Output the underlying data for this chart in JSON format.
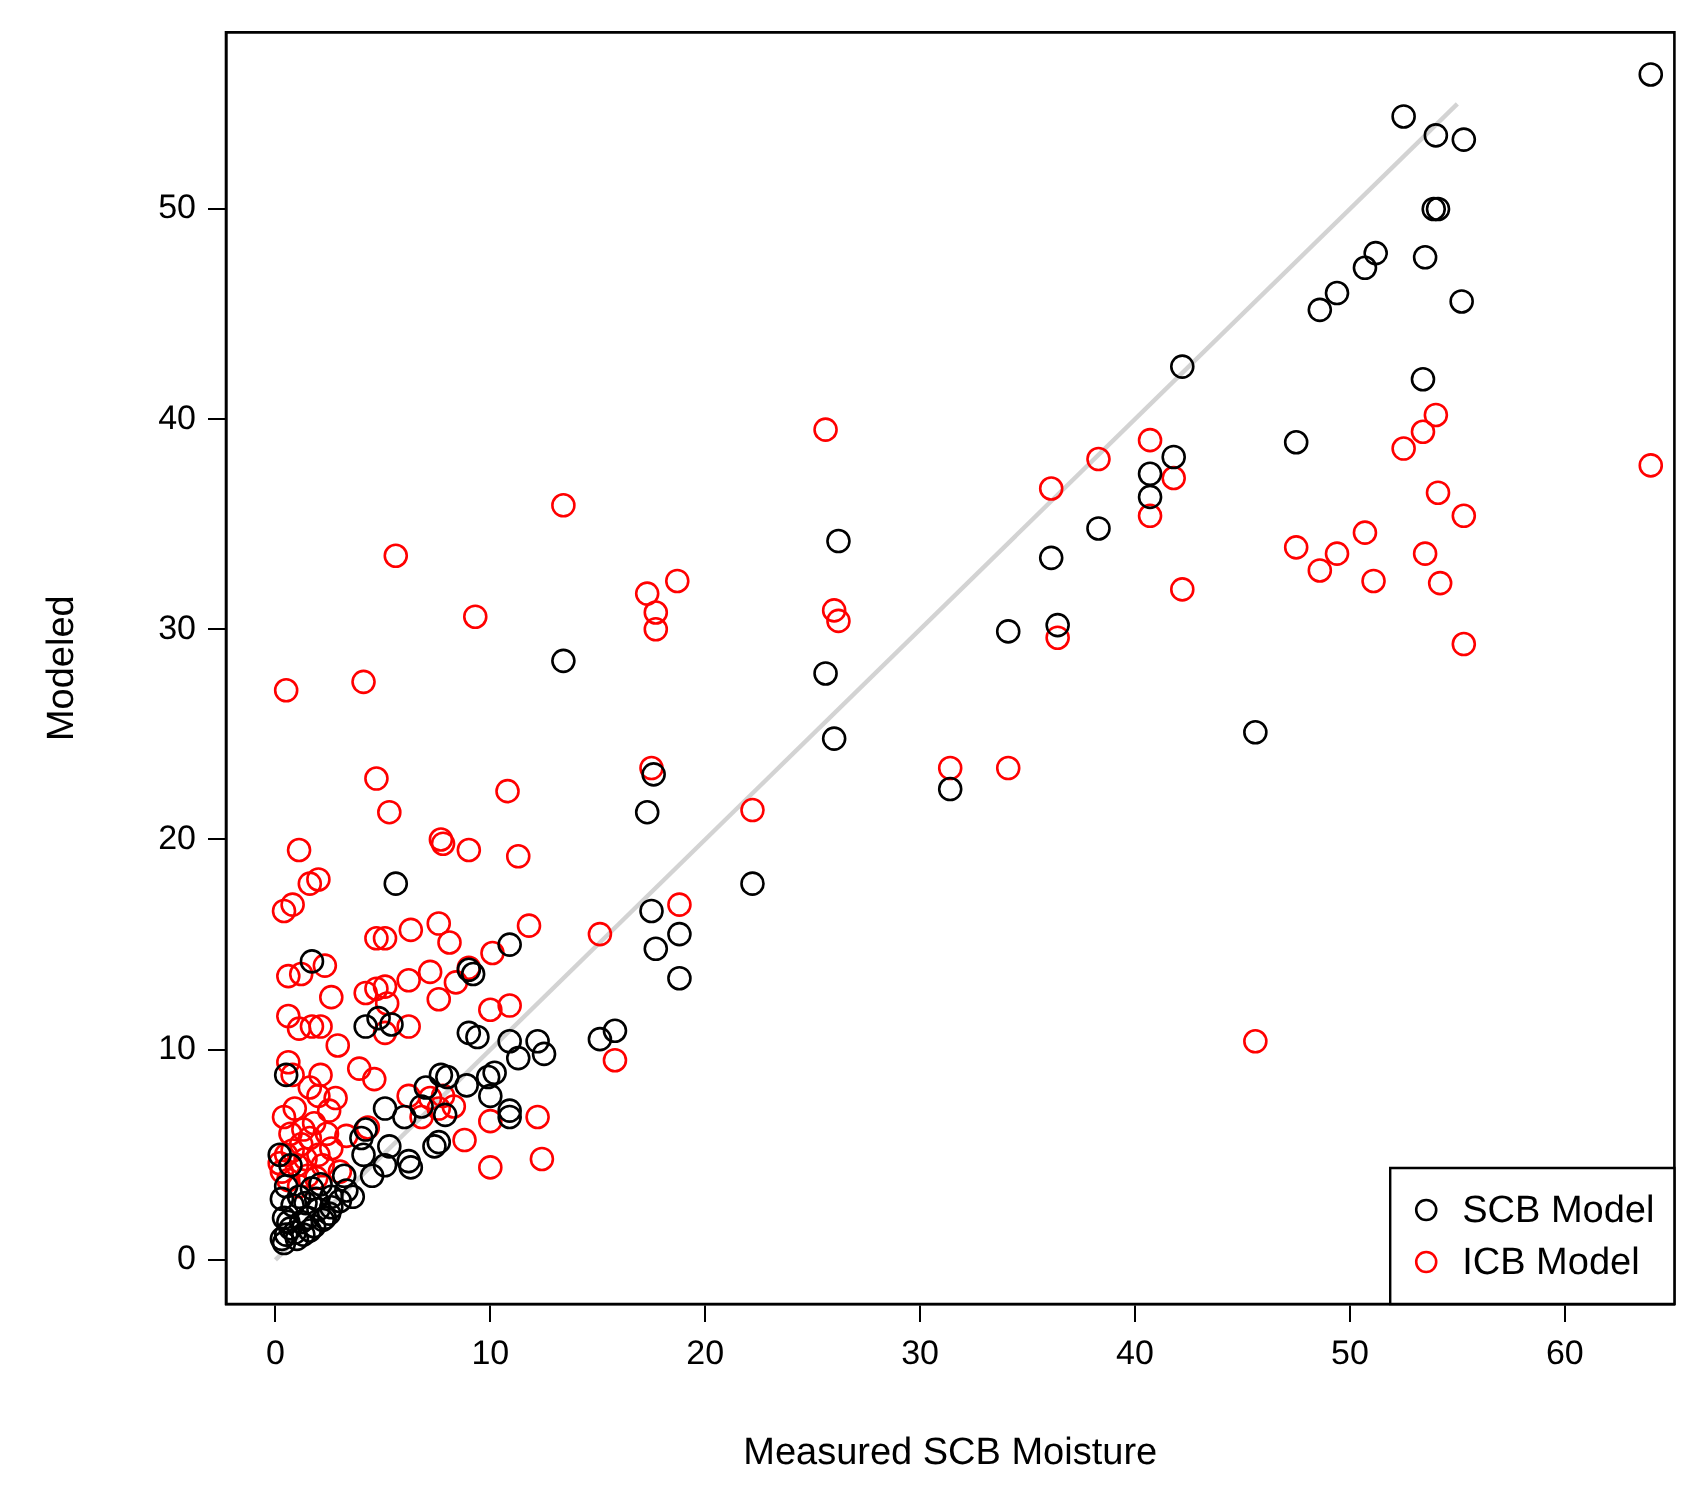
{
  "chart_data": {
    "type": "scatter",
    "xlabel": "Measured SCB Moisture",
    "ylabel": "Modeled",
    "xlim": [
      -2.3,
      65.1
    ],
    "ylim": [
      -2.1,
      58.4
    ],
    "xticks": [
      0,
      10,
      20,
      30,
      40,
      50,
      60
    ],
    "yticks": [
      0,
      10,
      20,
      30,
      40,
      50
    ],
    "grid": false,
    "legend": "bottom right",
    "marker": "circle",
    "series": [
      {
        "name": "SCB Model",
        "color": "#000000",
        "x": [
          64.0,
          52.5,
          54.0,
          55.3,
          54.1,
          53.9,
          53.5,
          51.2,
          50.7,
          49.4,
          48.6,
          55.2,
          42.2,
          53.4,
          47.5,
          41.8,
          40.7,
          40.7,
          45.6,
          38.3,
          36.1,
          26.2,
          34.1,
          36.4,
          25.6,
          26.0,
          31.4,
          17.6,
          17.3,
          22.2,
          17.5,
          18.8,
          17.7,
          18.8,
          15.8,
          15.1,
          13.4,
          5.6,
          1.7,
          10.9,
          9.2,
          9.0,
          4.2,
          4.8,
          5.4,
          9.0,
          9.4,
          10.9,
          12.2,
          12.5,
          11.3,
          0.5,
          7.7,
          8.0,
          9.9,
          10.2,
          8.9,
          7.0,
          10.0,
          10.9,
          10.9,
          5.1,
          6.0,
          7.9,
          6.8,
          7.6,
          7.4,
          4.2,
          5.3,
          6.2,
          6.3,
          5.1,
          4.1,
          3.2,
          3.0,
          2.6,
          0.3,
          0.5,
          0.7,
          1.0,
          1.2,
          1.5,
          1.8,
          2.0,
          2.3,
          2.6,
          0.4,
          0.8,
          1.1,
          1.4,
          1.7,
          2.1,
          0.3,
          0.6,
          0.9,
          1.3,
          1.6,
          2.2,
          0.5,
          0.7,
          0.4,
          1.9,
          2.5,
          3.3,
          3.6,
          4.5,
          4.0,
          0.2
        ],
        "values": [
          56.4,
          54.4,
          53.5,
          53.3,
          50.0,
          50.0,
          47.7,
          47.9,
          47.2,
          46.0,
          45.2,
          45.6,
          42.5,
          41.9,
          38.9,
          38.2,
          37.4,
          36.3,
          25.1,
          34.8,
          33.4,
          34.2,
          29.9,
          30.2,
          27.9,
          24.8,
          22.4,
          23.1,
          21.3,
          17.9,
          16.6,
          15.5,
          14.8,
          13.4,
          10.9,
          10.5,
          28.5,
          17.9,
          14.2,
          15.0,
          13.6,
          13.8,
          11.1,
          11.5,
          11.2,
          10.8,
          10.6,
          10.4,
          10.4,
          9.8,
          9.6,
          8.8,
          8.8,
          8.7,
          8.7,
          8.9,
          8.3,
          8.2,
          7.8,
          7.1,
          6.8,
          7.2,
          6.8,
          6.9,
          7.3,
          5.6,
          5.4,
          6.2,
          5.4,
          4.7,
          4.4,
          4.5,
          5.0,
          4.0,
          2.8,
          2.5,
          1.0,
          1.2,
          1.5,
          1.0,
          1.8,
          2.0,
          1.6,
          2.4,
          2.0,
          3.0,
          2.0,
          2.6,
          3.0,
          2.7,
          3.4,
          3.6,
          2.9,
          1.8,
          1.3,
          1.2,
          1.4,
          1.9,
          3.5,
          4.5,
          0.8,
          2.9,
          2.2,
          3.3,
          3.0,
          4.0,
          5.8,
          5.0
        ]
      },
      {
        "name": "ICB Model",
        "color": "#ff0000",
        "x": [
          40.7,
          41.8,
          40.7,
          42.2,
          54.0,
          53.4,
          52.5,
          64.0,
          54.1,
          55.3,
          50.7,
          47.5,
          49.4,
          53.5,
          48.6,
          51.1,
          54.2,
          55.3,
          45.6,
          25.6,
          38.3,
          36.1,
          18.7,
          17.3,
          17.7,
          17.7,
          26.0,
          26.2,
          36.4,
          31.4,
          34.1,
          17.5,
          22.2,
          18.8,
          15.1,
          15.8,
          13.4,
          5.6,
          9.3,
          0.5,
          4.1,
          4.7,
          10.8,
          5.3,
          7.7,
          7.8,
          9.0,
          11.3,
          1.1,
          2.0,
          1.6,
          0.8,
          0.4,
          11.8,
          7.6,
          6.3,
          4.7,
          5.1,
          8.1,
          10.1,
          2.3,
          0.6,
          1.2,
          2.6,
          4.2,
          4.7,
          5.1,
          6.2,
          7.2,
          8.4,
          9.0,
          7.6,
          10.9,
          10.0,
          5.2,
          0.6,
          1.1,
          1.7,
          2.1,
          5.1,
          6.2,
          2.9,
          0.6,
          0.8,
          2.1,
          3.9,
          4.6,
          1.6,
          2.0,
          2.8,
          2.5,
          6.2,
          7.2,
          7.8,
          7.6,
          8.3,
          4.3,
          6.8,
          10.0,
          12.2,
          8.8,
          10.0,
          12.4,
          3.3,
          0.3,
          0.5,
          0.7,
          1.0,
          1.2,
          1.5,
          1.8,
          2.0,
          0.4,
          0.9,
          1.3,
          1.6,
          2.2,
          0.6,
          1.1,
          2.4,
          0.8,
          1.4,
          1.9,
          2.6,
          3.0,
          0.2
        ],
        "values": [
          39.0,
          37.2,
          35.4,
          31.9,
          40.2,
          39.4,
          38.6,
          37.8,
          36.5,
          35.4,
          34.6,
          33.9,
          33.6,
          33.6,
          32.8,
          32.3,
          32.2,
          29.3,
          10.4,
          39.5,
          38.1,
          36.7,
          32.3,
          31.7,
          30.8,
          30.0,
          30.9,
          30.4,
          29.6,
          23.4,
          23.4,
          23.4,
          21.4,
          16.9,
          15.5,
          9.5,
          35.9,
          33.5,
          30.6,
          27.1,
          27.5,
          22.9,
          22.3,
          21.3,
          20.0,
          19.8,
          19.5,
          19.2,
          19.5,
          18.1,
          17.9,
          16.9,
          16.6,
          15.9,
          16.0,
          15.7,
          15.3,
          15.3,
          15.1,
          14.6,
          14.0,
          13.5,
          13.6,
          12.5,
          12.7,
          12.9,
          13.0,
          13.3,
          13.7,
          13.2,
          13.9,
          12.4,
          12.1,
          11.9,
          12.2,
          11.6,
          11.0,
          11.1,
          11.1,
          10.8,
          11.1,
          10.2,
          9.4,
          8.8,
          8.8,
          9.1,
          8.6,
          8.2,
          7.8,
          7.7,
          7.1,
          7.8,
          7.7,
          7.8,
          7.2,
          7.3,
          6.3,
          6.8,
          6.6,
          6.8,
          5.7,
          4.4,
          4.8,
          5.9,
          4.2,
          5.0,
          6.0,
          4.5,
          5.5,
          4.0,
          6.5,
          5.0,
          6.8,
          7.2,
          6.2,
          5.8,
          4.5,
          3.8,
          3.5,
          6.0,
          5.2,
          4.8,
          3.9,
          5.3,
          4.2,
          4.6
        ]
      },
      {
        "type": "line",
        "marker": "none",
        "color": "#d3d3d3",
        "x": [
          0,
          55
        ],
        "values": [
          0,
          55
        ]
      }
    ]
  }
}
